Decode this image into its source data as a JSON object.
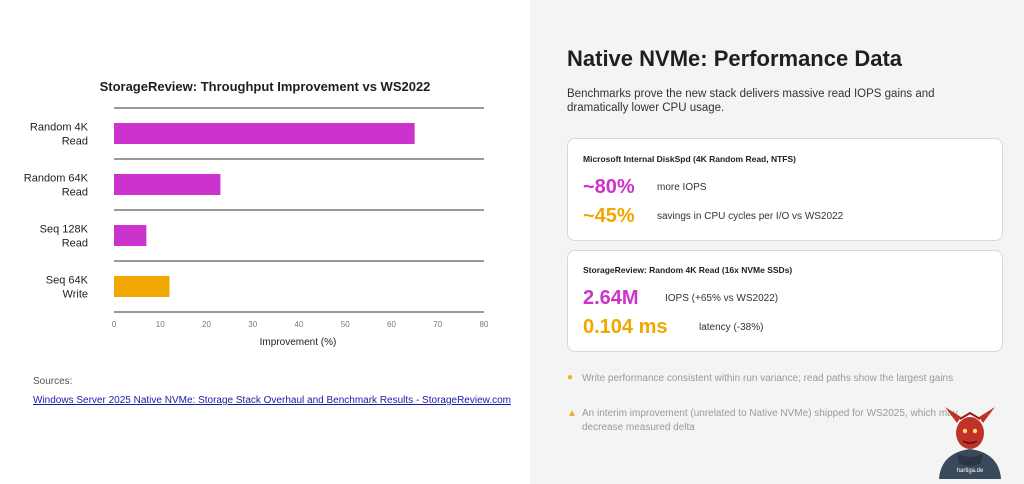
{
  "chart_data": {
    "type": "bar",
    "orientation": "horizontal",
    "title": "StorageReview: Throughput Improvement vs WS2022",
    "xlabel": "Improvement (%)",
    "ylabel": "",
    "xlim": [
      0,
      80
    ],
    "xticks": [
      0,
      10,
      20,
      30,
      40,
      50,
      60,
      70,
      80
    ],
    "grid": false,
    "categories": [
      {
        "line1": "Random 4K",
        "line2": "Read"
      },
      {
        "line1": "Random 64K",
        "line2": "Read"
      },
      {
        "line1": "Seq 128K",
        "line2": "Read"
      },
      {
        "line1": "Seq 64K",
        "line2": "Write"
      }
    ],
    "values": [
      65,
      23,
      7,
      12
    ],
    "colors": [
      "#cc33cc",
      "#cc33cc",
      "#cc33cc",
      "#f0a800"
    ]
  },
  "sources": {
    "label": "Sources:",
    "link_text": "Windows Server 2025 Native NVMe: Storage Stack Overhaul and Benchmark Results - StorageReview.com"
  },
  "right": {
    "title": "Native NVMe: Performance Data",
    "subtitle": "Benchmarks prove the new stack delivers massive read IOPS gains and dramatically lower CPU usage."
  },
  "card1": {
    "title": "Microsoft Internal DiskSpd (4K Random Read, NTFS)",
    "stat1_value": "~80%",
    "stat1_desc": "more IOPS",
    "stat2_value": "~45%",
    "stat2_desc": "savings in CPU cycles per I/O vs WS2022"
  },
  "card2": {
    "title": "StorageReview: Random 4K Read (16x NVMe SSDs)",
    "stat1_value": "2.64M",
    "stat1_desc": "IOPS (+65% vs WS2022)",
    "stat2_value": "0.104 ms",
    "stat2_desc": "latency (-38%)"
  },
  "notes": [
    {
      "icon": "●",
      "text": "Write performance consistent within run variance; read paths show the largest gains"
    },
    {
      "icon": "▲",
      "text": "An interim improvement (unrelated to Native NVMe) shipped for WS2025, which may decrease measured delta"
    }
  ],
  "mascot": {
    "label": "hartiga.de"
  },
  "colors": {
    "magenta": "#cc33cc",
    "amber": "#f0a800"
  }
}
